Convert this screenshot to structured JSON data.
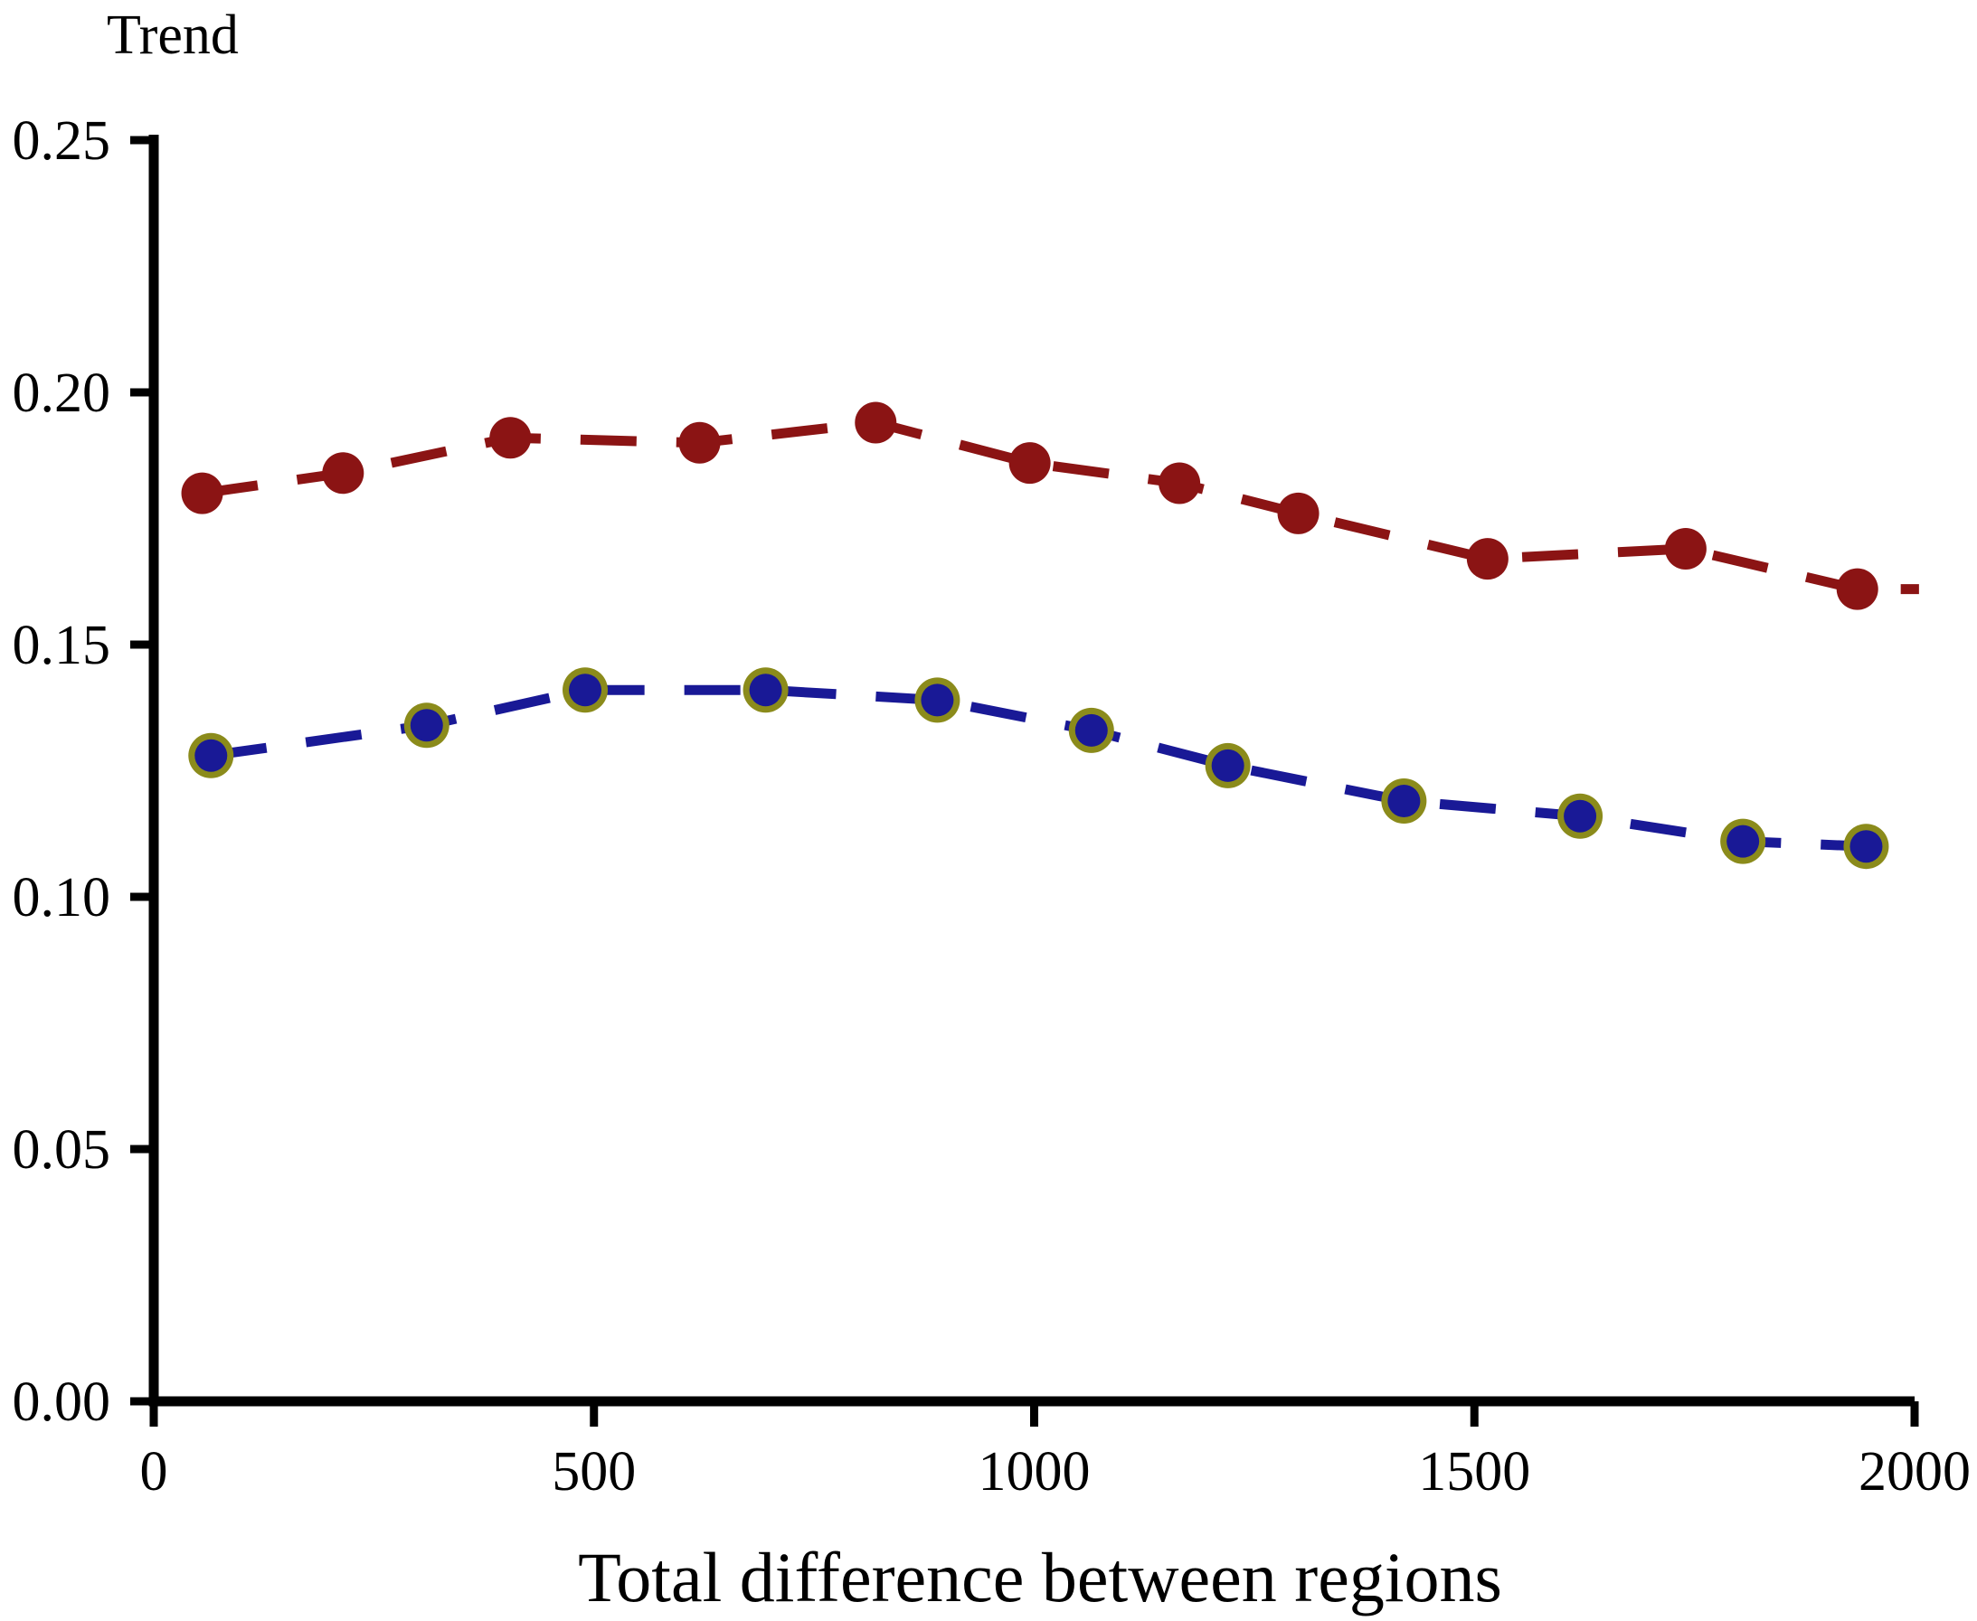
{
  "chart_data": {
    "type": "line",
    "title": "",
    "ylabel": "Trend",
    "xlabel": "Total difference between regions",
    "xlim": [
      0,
      2000
    ],
    "ylim": [
      0,
      0.25
    ],
    "xticks": [
      0,
      500,
      1000,
      1500,
      2000
    ],
    "yticks": [
      0.0,
      0.05,
      0.1,
      0.15,
      0.2,
      0.25
    ],
    "grid": false,
    "legend_position": "none",
    "axis_color": "#000000",
    "text_color": "#000000",
    "background_color": "#ffffff",
    "series": [
      {
        "name": "upper series (dark red, filled circles, dashed line)",
        "line_color": "#8b1414",
        "marker": "filled-circle",
        "marker_color": "#8b1414",
        "x": [
          55,
          215,
          405,
          620,
          820,
          995,
          1165,
          1300,
          1515,
          1740,
          1935
        ],
        "y": [
          0.18,
          0.184,
          0.191,
          0.19,
          0.194,
          0.186,
          0.182,
          0.176,
          0.167,
          0.169,
          0.161
        ],
        "line_extension": {
          "x": 2005,
          "y": 0.161
        }
      },
      {
        "name": "lower series (navy circles with olive ring, dashed line)",
        "line_color": "#191996",
        "marker": "ring-circle",
        "marker_color": "#191996",
        "marker_ring_color": "#8b8b1b",
        "x": [
          65,
          310,
          490,
          695,
          890,
          1065,
          1220,
          1420,
          1620,
          1805,
          1945
        ],
        "y": [
          0.128,
          0.134,
          0.141,
          0.141,
          0.139,
          0.133,
          0.126,
          0.119,
          0.116,
          0.111,
          0.11
        ]
      }
    ]
  }
}
